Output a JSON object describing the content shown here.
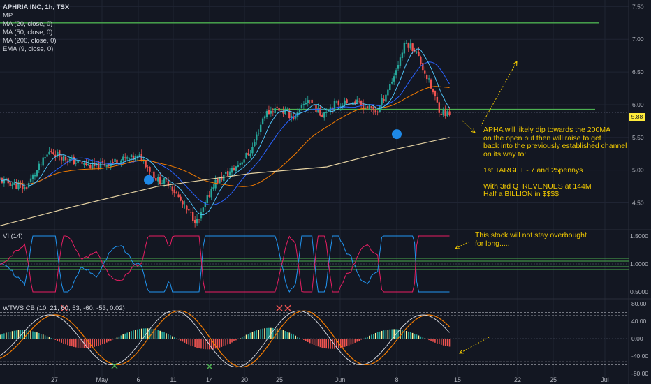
{
  "header": {
    "title": "APHRIA INC, 1h, TSX"
  },
  "legend": [
    "MP",
    "MA (20, close, 0)",
    "MA (50, close, 0)",
    "MA (200, close, 0)",
    "EMA (9, close, 0)"
  ],
  "last_price": "5.88",
  "annotations": {
    "main_note": "APHA will likely dip towards the 200MA\non the open but then will raise to get\nback into the previously established channel\non its way to:\n\n1st TARGET - 7 and 25pennys\n\nWith 3rd Q  REVENUES at 144M\nHalf a BILLION in $$$$",
    "vi_note": "This stock will not stay overbought\nfor long....."
  },
  "panes": {
    "vi_title": "VI (14)",
    "wt_title": "WTWS CB (10, 21, 60, 53, -60, -53, 0.02)"
  },
  "colors": {
    "up": "#26a69a",
    "down": "#ef5350",
    "ma20": "#2962ff",
    "ma50": "#f57c00",
    "ma200": "#e6d3a3",
    "ema9": "#4fc3f7",
    "level": "#4caf50",
    "note": "#f0c800",
    "vi_plus": "#2196f3",
    "vi_minus": "#e91e63",
    "wt1": "#d1d4dc",
    "wt2": "#f57c00"
  },
  "chart_data": [
    {
      "type": "candlestick",
      "title": "APHRIA INC, 1h, TSX",
      "x_ticks": [
        "27",
        "May",
        "6",
        "11",
        "14",
        "20",
        "25",
        "Jun",
        "8",
        "15",
        "22",
        "25",
        "Jul"
      ],
      "y_ticks": [
        "7.50",
        "7.00",
        "6.50",
        "6.00",
        "5.50",
        "5.00",
        "4.50"
      ],
      "ylim": [
        4.1,
        7.6
      ],
      "horizontal_levels": [
        7.25,
        5.93
      ],
      "highlight_dots": [
        {
          "x": "May 6",
          "y": 4.85
        },
        {
          "x": "Jun 8",
          "y": 5.55
        }
      ],
      "close_path": [
        {
          "x": 0,
          "y": 4.85
        },
        {
          "x": 0.04,
          "y": 4.72
        },
        {
          "x": 0.08,
          "y": 5.3
        },
        {
          "x": 0.11,
          "y": 5.15
        },
        {
          "x": 0.15,
          "y": 5.05
        },
        {
          "x": 0.19,
          "y": 5.15
        },
        {
          "x": 0.225,
          "y": 5.2
        },
        {
          "x": 0.25,
          "y": 4.85
        },
        {
          "x": 0.27,
          "y": 4.8
        },
        {
          "x": 0.295,
          "y": 4.4
        },
        {
          "x": 0.315,
          "y": 4.2
        },
        {
          "x": 0.34,
          "y": 4.8
        },
        {
          "x": 0.37,
          "y": 5.0
        },
        {
          "x": 0.4,
          "y": 5.3
        },
        {
          "x": 0.42,
          "y": 5.85
        },
        {
          "x": 0.44,
          "y": 5.95
        },
        {
          "x": 0.47,
          "y": 5.8
        },
        {
          "x": 0.49,
          "y": 6.1
        },
        {
          "x": 0.51,
          "y": 5.85
        },
        {
          "x": 0.53,
          "y": 6.0
        },
        {
          "x": 0.56,
          "y": 6.05
        },
        {
          "x": 0.6,
          "y": 5.9
        },
        {
          "x": 0.625,
          "y": 6.4
        },
        {
          "x": 0.645,
          "y": 6.95
        },
        {
          "x": 0.66,
          "y": 6.85
        },
        {
          "x": 0.68,
          "y": 6.4
        },
        {
          "x": 0.7,
          "y": 5.9
        },
        {
          "x": 0.715,
          "y": 5.85
        }
      ],
      "ma200_path": [
        {
          "x": 0,
          "y": 4.15
        },
        {
          "x": 0.12,
          "y": 4.45
        },
        {
          "x": 0.25,
          "y": 4.75
        },
        {
          "x": 0.4,
          "y": 4.95
        },
        {
          "x": 0.52,
          "y": 5.05
        },
        {
          "x": 0.62,
          "y": 5.3
        },
        {
          "x": 0.715,
          "y": 5.5
        }
      ]
    },
    {
      "type": "line",
      "title": "VI (14)",
      "y_ticks": [
        "1.5000",
        "1.0000",
        "0.5000"
      ],
      "ylim": [
        0.4,
        1.6
      ],
      "levels": [
        1.1,
        1.05,
        0.95,
        0.9
      ]
    },
    {
      "type": "line",
      "title": "WTWS CB (10, 21, 60, 53, -60, -53, 0.02)",
      "y_ticks": [
        "80.00",
        "40.00",
        "0.00",
        "-40.00",
        "-80.00"
      ],
      "ylim": [
        -88,
        88
      ],
      "levels": [
        60,
        53,
        -53,
        -60
      ],
      "cross_markers": [
        {
          "x": "27",
          "y": 70,
          "color": "red"
        },
        {
          "x": "May",
          "y": -62,
          "color": "green"
        },
        {
          "x": "14",
          "y": -64,
          "color": "green"
        },
        {
          "x": "25",
          "y": 70,
          "color": "red"
        },
        {
          "x": "25",
          "y": 70,
          "color": "red"
        }
      ]
    }
  ]
}
